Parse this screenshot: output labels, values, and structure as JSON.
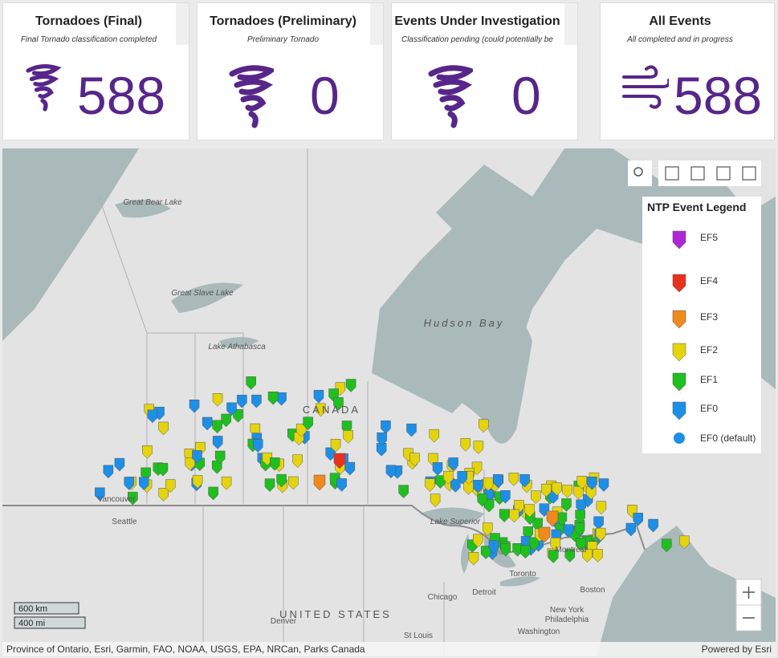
{
  "cards": [
    {
      "title": "Tornadoes (Final)",
      "subtitle": "Final Tornado classification completed",
      "value": 588
    },
    {
      "title": "Tornadoes (Preliminary)",
      "subtitle": "Preliminary Tornado",
      "value": 0
    },
    {
      "title": "Events Under Investigation",
      "subtitle": "Classification pending (could potentially be",
      "value": 0
    },
    {
      "title": "All Events",
      "subtitle": "All completed and in progress",
      "value": 588
    }
  ],
  "map": {
    "labels": [
      "Great Bear Lake",
      "Great Slave Lake",
      "Lake Athabasca",
      "Hudson Bay",
      "CANADA",
      "Vancouver",
      "Seattle",
      "Lake Superior",
      "Chicago",
      "Detroit",
      "Toronto",
      "Montreal",
      "Boston",
      "New York",
      "Philadelphia",
      "Washington",
      "St Louis",
      "Denver",
      "UNITED STATES"
    ]
  },
  "legend": {
    "title": "NTP Event Legend",
    "items": [
      {
        "label": "EF5",
        "color": "#b026d6"
      },
      {
        "label": "EF4",
        "color": "#e8321e"
      },
      {
        "label": "EF3",
        "color": "#f08a1c"
      },
      {
        "label": "EF2",
        "color": "#e4d40e"
      },
      {
        "label": "EF1",
        "color": "#1fbf1f"
      },
      {
        "label": "EF0",
        "color": "#1e8fe6"
      },
      {
        "label": "EF0 (default)",
        "color": "#1e8fe6"
      }
    ]
  },
  "scale": {
    "km": "600 km",
    "mi": "400 mi"
  },
  "attribution": "Province of Ontario, Esri, Garmin, FAO, NOAA, USGS, EPA, NRCan, Parks Canada",
  "powered_by": "Powered by Esri"
}
